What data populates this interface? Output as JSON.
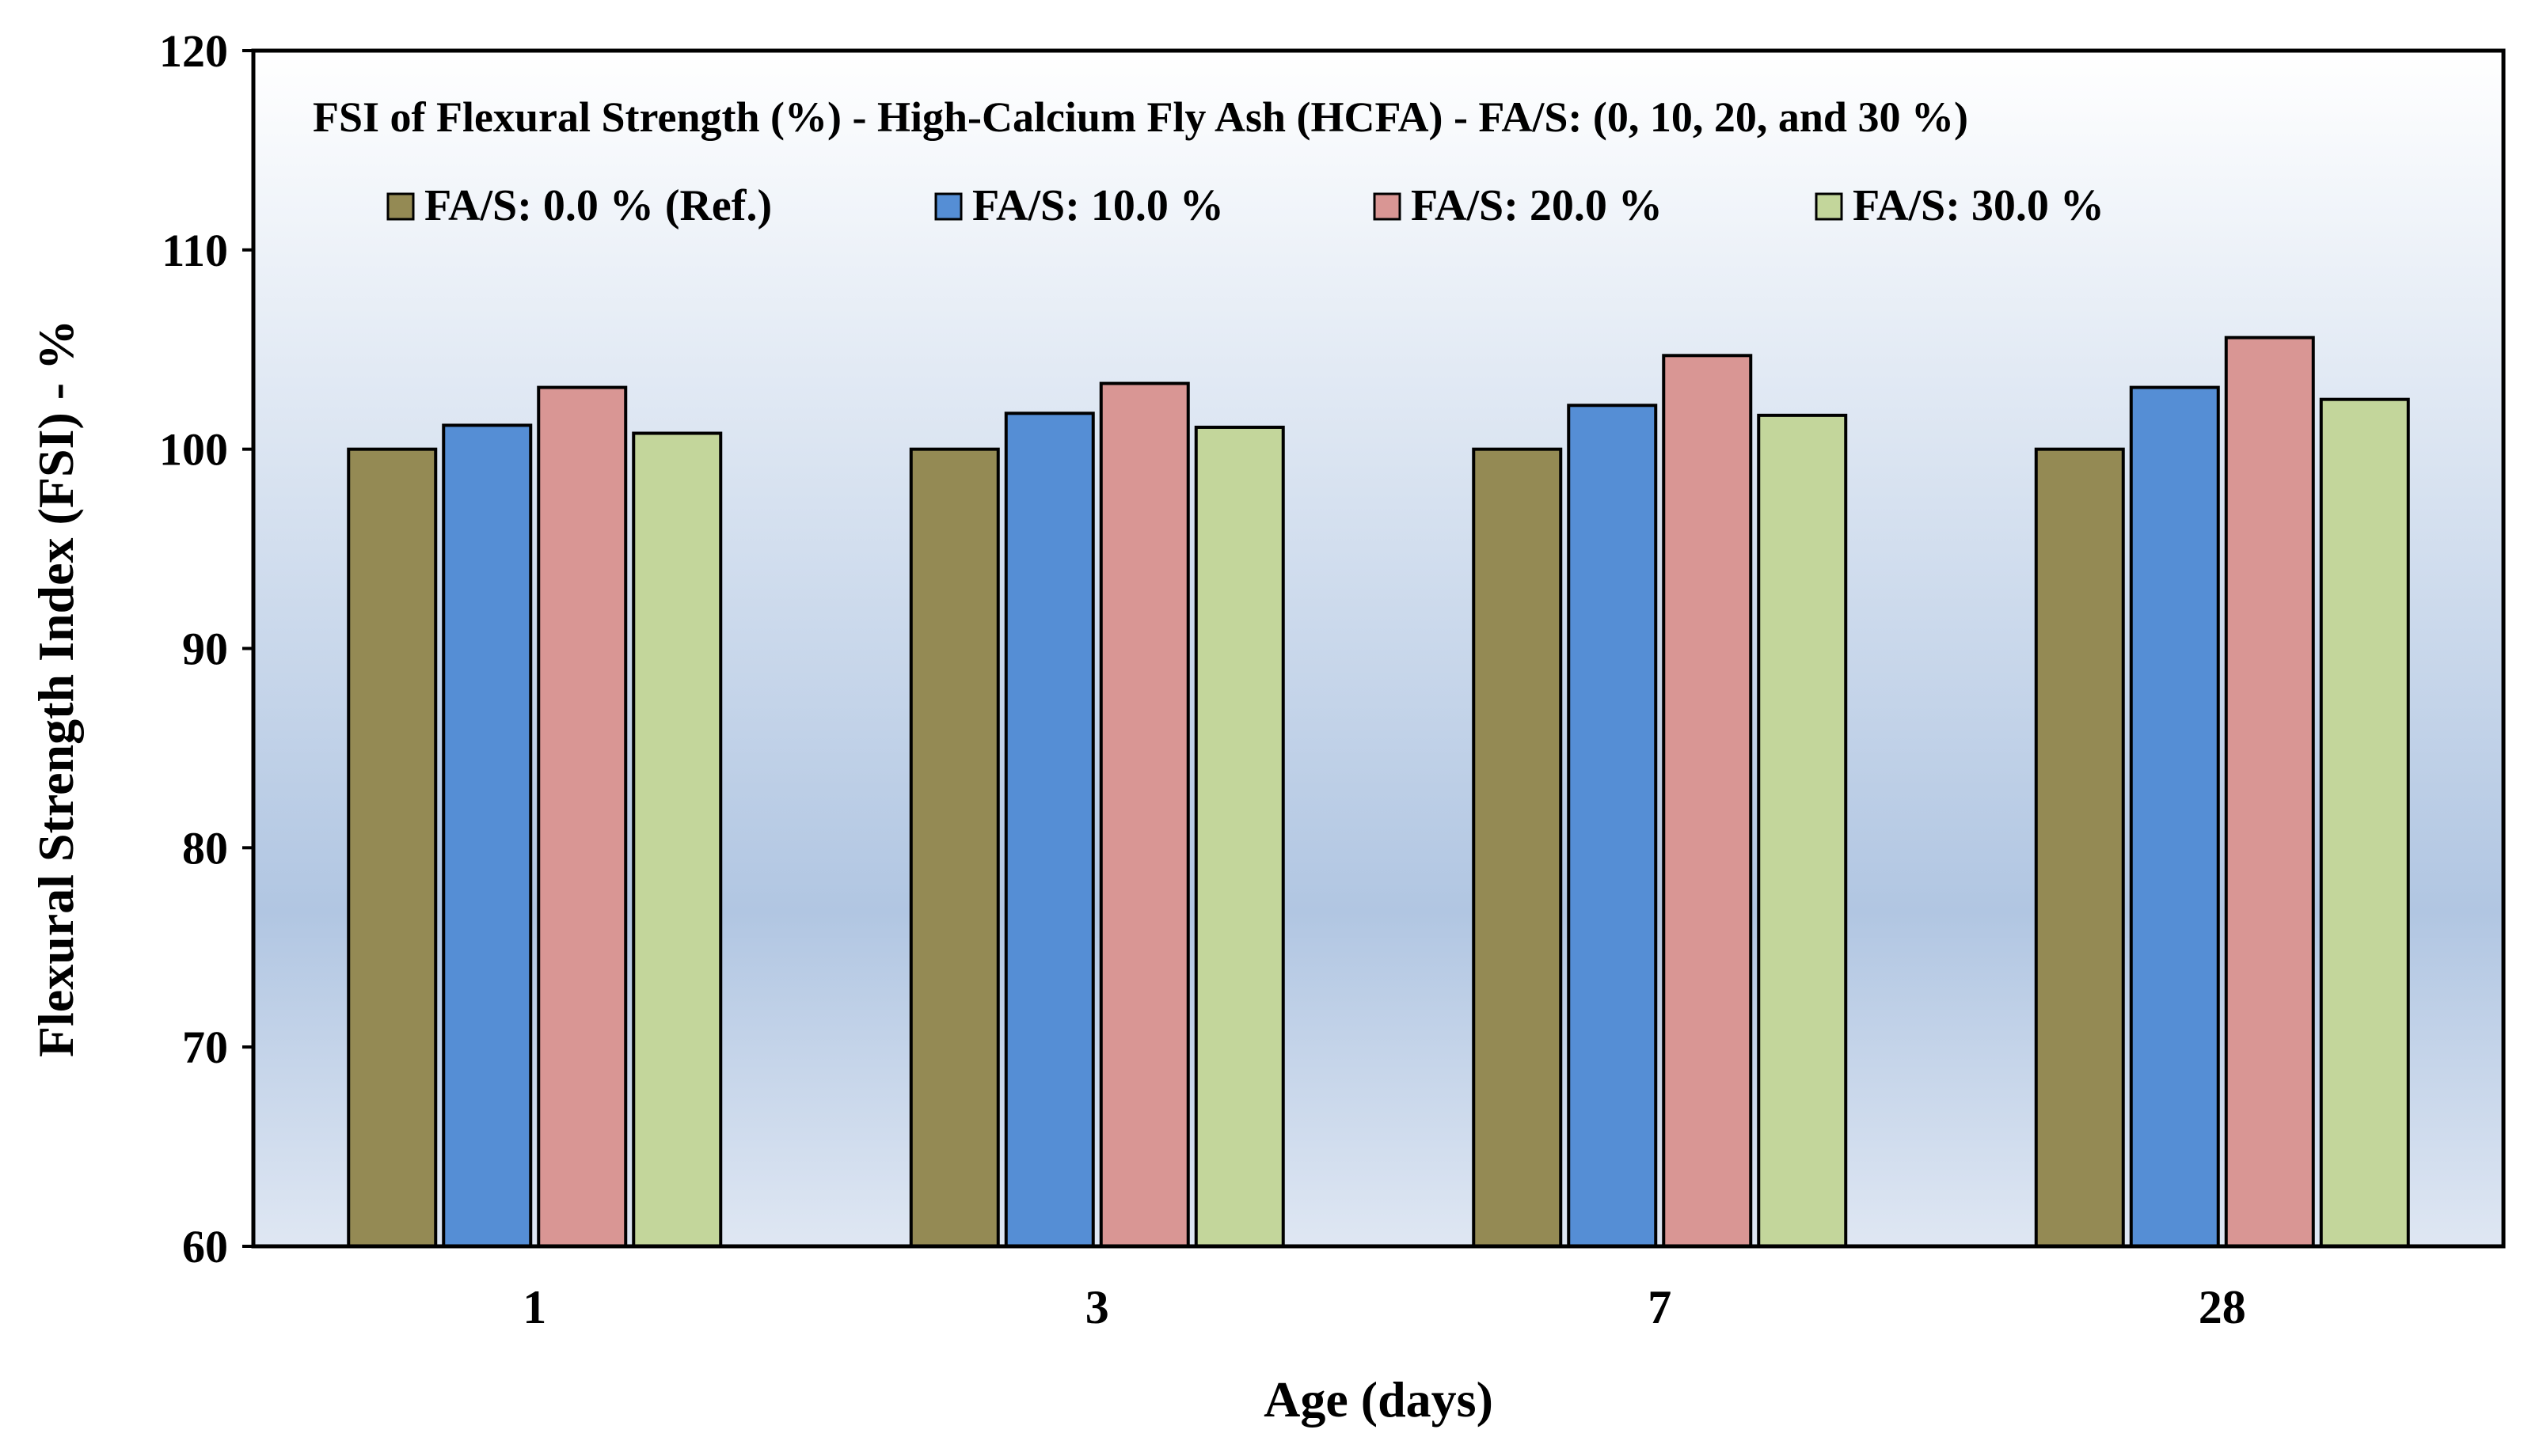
{
  "chart_data": {
    "type": "bar",
    "title": "FSI of Flexural Strength (%) - High-Calcium Fly Ash (HCFA) - FA/S: (0, 10, 20, and 30 %)",
    "xlabel": "Age (days)",
    "ylabel": "Flexural Strength Index (FSI) - %",
    "ylim": [
      60,
      120
    ],
    "yticks": [
      60,
      70,
      80,
      90,
      100,
      110,
      120
    ],
    "categories": [
      "1",
      "3",
      "7",
      "28"
    ],
    "legend_position": "top",
    "series": [
      {
        "name": "FA/S: 0.0 % (Ref.)",
        "color": "#948a54",
        "values": [
          100.0,
          100.0,
          100.0,
          100.0
        ]
      },
      {
        "name": "FA/S: 10.0 %",
        "color": "#558ed5",
        "values": [
          101.2,
          101.8,
          102.2,
          103.1
        ]
      },
      {
        "name": "FA/S: 20.0 %",
        "color": "#d99694",
        "values": [
          103.1,
          103.3,
          104.7,
          105.6
        ]
      },
      {
        "name": "FA/S: 30.0 %",
        "color": "#c3d69b",
        "values": [
          100.8,
          101.1,
          101.7,
          102.5
        ]
      }
    ]
  }
}
